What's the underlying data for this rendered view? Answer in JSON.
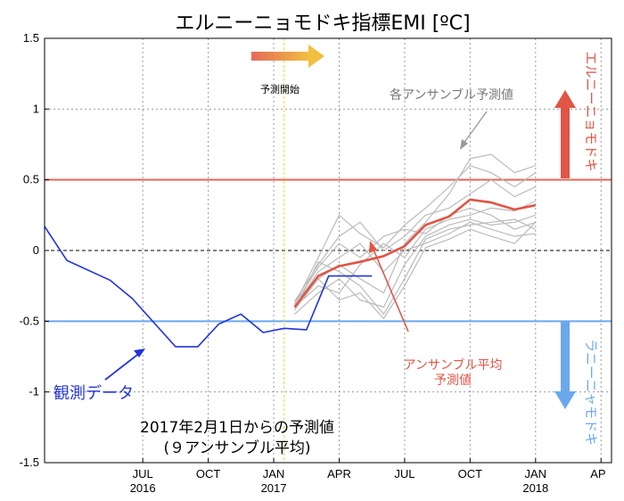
{
  "chart_data": {
    "type": "line",
    "title": "エルニーニョモドキ指標EMI [ºC]",
    "ylim": [
      -1.5,
      1.5
    ],
    "y_ticks": [
      "1.5",
      "1",
      "0.5",
      "0",
      "-0.5",
      "-1",
      "-1.5"
    ],
    "y_tick_values": [
      1.5,
      1,
      0.5,
      0,
      -0.5,
      -1,
      -1.5
    ],
    "x_ticks": [
      {
        "t": 2016.5,
        "label": "JUL",
        "year": "2016"
      },
      {
        "t": 2016.75,
        "label": "OCT",
        "year": ""
      },
      {
        "t": 2017.0,
        "label": "JAN",
        "year": "2017"
      },
      {
        "t": 2017.25,
        "label": "APR",
        "year": ""
      },
      {
        "t": 2017.5,
        "label": "JUL",
        "year": ""
      },
      {
        "t": 2017.75,
        "label": "OCT",
        "year": ""
      },
      {
        "t": 2018.0,
        "label": "JAN",
        "year": "2018"
      },
      {
        "t": 2018.25,
        "label": "AP",
        "year": ""
      }
    ],
    "xlim": [
      2016.125,
      2018.29
    ],
    "grid": true,
    "thresholds": [
      {
        "value": 0.5,
        "color": "#e8665a"
      },
      {
        "value": -0.5,
        "color": "#6aa8ee"
      }
    ],
    "forecast_start": 2017.04,
    "observed": {
      "name": "観測データ",
      "color": "#2233dd",
      "x": [
        2016.125,
        2016.21,
        2016.375,
        2016.46,
        2016.625,
        2016.71,
        2016.79,
        2016.875,
        2016.96,
        2017.04,
        2017.125,
        2017.21,
        2017.29,
        2017.375
      ],
      "y": [
        0.17,
        -0.07,
        -0.21,
        -0.34,
        -0.68,
        -0.68,
        -0.52,
        -0.45,
        -0.58,
        -0.55,
        -0.56,
        -0.18,
        -0.18,
        -0.18
      ]
    },
    "ensemble_mean": {
      "name": "アンサンブル平均予測値",
      "color": "#e05545",
      "x": [
        2017.08,
        2017.17,
        2017.25,
        2017.33,
        2017.42,
        2017.5,
        2017.58,
        2017.67,
        2017.75,
        2017.83,
        2017.92,
        2018.0
      ],
      "y": [
        -0.4,
        -0.18,
        -0.11,
        -0.08,
        -0.04,
        0.03,
        0.18,
        0.24,
        0.36,
        0.34,
        0.29,
        0.32
      ]
    },
    "ensemble_members": {
      "name": "各アンサンブル予測値",
      "color": "#bbbbbb",
      "x": [
        2017.08,
        2017.17,
        2017.25,
        2017.33,
        2017.42,
        2017.5,
        2017.58,
        2017.67,
        2017.75,
        2017.83,
        2017.92,
        2018.0
      ],
      "members": [
        [
          -0.38,
          -0.05,
          0.25,
          0.12,
          0.02,
          0.18,
          0.3,
          0.45,
          0.6,
          0.55,
          0.45,
          0.55
        ],
        [
          -0.42,
          -0.2,
          -0.1,
          -0.2,
          -0.3,
          0.05,
          0.2,
          0.4,
          0.65,
          0.68,
          0.55,
          0.6
        ],
        [
          -0.36,
          -0.1,
          0.1,
          0.2,
          0.0,
          0.1,
          0.25,
          0.3,
          0.4,
          0.5,
          0.38,
          0.45
        ],
        [
          -0.4,
          -0.25,
          -0.3,
          -0.1,
          0.05,
          -0.05,
          0.15,
          0.22,
          0.25,
          0.3,
          0.28,
          0.35
        ],
        [
          -0.45,
          -0.3,
          -0.2,
          -0.35,
          -0.4,
          -0.1,
          0.1,
          0.18,
          0.22,
          0.18,
          0.2,
          0.25
        ],
        [
          -0.38,
          -0.12,
          0.05,
          -0.05,
          0.1,
          0.15,
          0.12,
          0.25,
          0.3,
          0.25,
          0.15,
          0.2
        ],
        [
          -0.42,
          -0.08,
          -0.15,
          -0.25,
          -0.45,
          -0.2,
          0.08,
          0.15,
          0.18,
          0.2,
          0.22,
          0.15
        ],
        [
          -0.4,
          -0.15,
          -0.05,
          0.05,
          -0.15,
          0.0,
          0.05,
          0.12,
          0.2,
          0.15,
          0.1,
          0.12
        ],
        [
          -0.36,
          -0.2,
          -0.35,
          -0.3,
          -0.48,
          -0.25,
          0.02,
          0.08,
          0.15,
          0.1,
          0.05,
          0.2
        ]
      ]
    },
    "annotations": {
      "ensemble_label": "各アンサンブル予測値",
      "forecast_start": "予測開始",
      "observed_label": "観測データ",
      "mean_label_1": "アンサンブル平均",
      "mean_label_2": "予測値",
      "note_line1": "2017年2月1日からの予測値",
      "note_line2": "(９アンサンブル平均)",
      "el_nino": "エルニーニョモドキ",
      "la_nina": "ラニーニャモドキ"
    }
  }
}
